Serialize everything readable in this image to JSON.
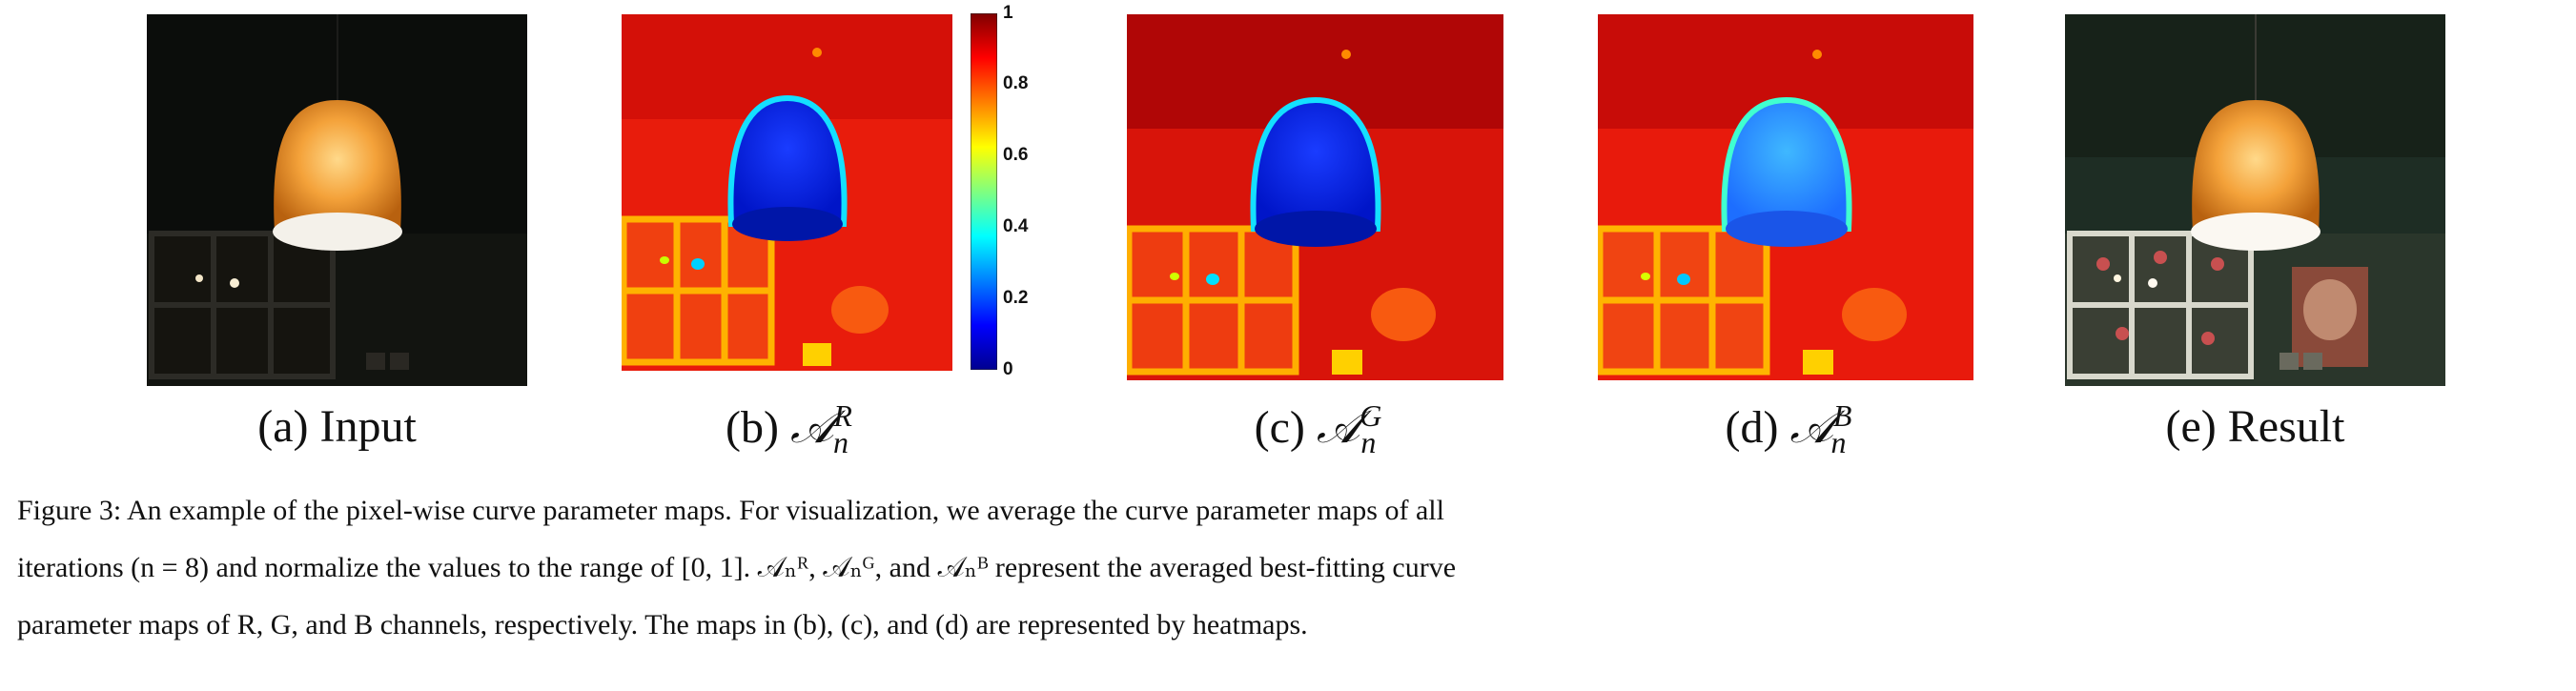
{
  "panels": [
    {
      "key": "a",
      "label": "(a) Input"
    },
    {
      "key": "b",
      "label_prefix": "(b)",
      "symbol": "𝒜",
      "sup": "R",
      "sub": "n"
    },
    {
      "key": "c",
      "label_prefix": "(c)",
      "symbol": "𝒜",
      "sup": "G",
      "sub": "n"
    },
    {
      "key": "d",
      "label_prefix": "(d)",
      "symbol": "𝒜",
      "sup": "B",
      "sub": "n"
    },
    {
      "key": "e",
      "label": "(e) Result"
    }
  ],
  "colorbar": {
    "ticks": [
      "1",
      "0.8",
      "0.6",
      "0.4",
      "0.2",
      "0"
    ],
    "colormap": "jet",
    "colors": [
      "#7f0000",
      "#ff0000",
      "#ffff00",
      "#00ffff",
      "#0000ff",
      "#00008f"
    ]
  },
  "caption": {
    "lines": [
      "Figure 3: An example of the pixel-wise curve parameter maps. For visualization, we average the curve parameter maps of all",
      "iterations (n = 8) and normalize the values to the range of [0, 1]. 𝒜ₙᴿ, 𝒜ₙᴳ, and 𝒜ₙᴮ represent the averaged best-fitting curve",
      "parameter maps of R, G, and B channels, respectively. The maps in (b), (c), and (d) are represented by heatmaps."
    ]
  }
}
